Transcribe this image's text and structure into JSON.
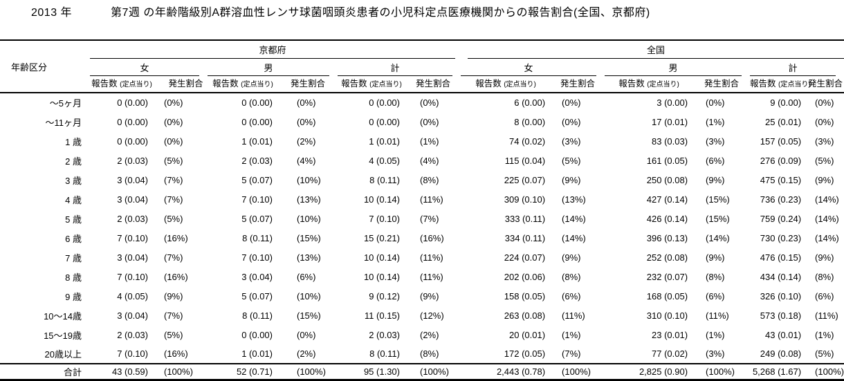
{
  "title": {
    "year": "2013 年",
    "main": "第7週 の年齢階級別A群溶血性レンサ球菌咽頭炎患者の小児科定点医療機関からの報告割合(全国、京都府)"
  },
  "colors": {
    "text": "#000000",
    "background": "#ffffff",
    "line": "#000000"
  },
  "table": {
    "age_header": "年齢区分",
    "region_headers": [
      "京都府",
      "全国"
    ],
    "gender_headers": [
      "女",
      "男",
      "計",
      "女",
      "男",
      "計"
    ],
    "subheader": {
      "reports": "報告数",
      "reports_note": "(定点当り)",
      "ratio": "発生割合"
    },
    "rows": [
      {
        "age": "～5ヶ月",
        "values": [
          "0 (0.00)",
          "(0%)",
          "0 (0.00)",
          "(0%)",
          "0 (0.00)",
          "(0%)",
          "6 (0.00)",
          "(0%)",
          "3 (0.00)",
          "(0%)",
          "9 (0.00)",
          "(0%)"
        ]
      },
      {
        "age": "～11ヶ月",
        "values": [
          "0 (0.00)",
          "(0%)",
          "0 (0.00)",
          "(0%)",
          "0 (0.00)",
          "(0%)",
          "8 (0.00)",
          "(0%)",
          "17 (0.01)",
          "(1%)",
          "25 (0.01)",
          "(0%)"
        ]
      },
      {
        "age": "1 歳",
        "values": [
          "0 (0.00)",
          "(0%)",
          "1 (0.01)",
          "(2%)",
          "1 (0.01)",
          "(1%)",
          "74 (0.02)",
          "(3%)",
          "83 (0.03)",
          "(3%)",
          "157 (0.05)",
          "(3%)"
        ]
      },
      {
        "age": "2 歳",
        "values": [
          "2 (0.03)",
          "(5%)",
          "2 (0.03)",
          "(4%)",
          "4 (0.05)",
          "(4%)",
          "115 (0.04)",
          "(5%)",
          "161 (0.05)",
          "(6%)",
          "276 (0.09)",
          "(5%)"
        ]
      },
      {
        "age": "3 歳",
        "values": [
          "3 (0.04)",
          "(7%)",
          "5 (0.07)",
          "(10%)",
          "8 (0.11)",
          "(8%)",
          "225 (0.07)",
          "(9%)",
          "250 (0.08)",
          "(9%)",
          "475 (0.15)",
          "(9%)"
        ]
      },
      {
        "age": "4 歳",
        "values": [
          "3 (0.04)",
          "(7%)",
          "7 (0.10)",
          "(13%)",
          "10 (0.14)",
          "(11%)",
          "309 (0.10)",
          "(13%)",
          "427 (0.14)",
          "(15%)",
          "736 (0.23)",
          "(14%)"
        ]
      },
      {
        "age": "5 歳",
        "values": [
          "2 (0.03)",
          "(5%)",
          "5 (0.07)",
          "(10%)",
          "7 (0.10)",
          "(7%)",
          "333 (0.11)",
          "(14%)",
          "426 (0.14)",
          "(15%)",
          "759 (0.24)",
          "(14%)"
        ]
      },
      {
        "age": "6 歳",
        "values": [
          "7 (0.10)",
          "(16%)",
          "8 (0.11)",
          "(15%)",
          "15 (0.21)",
          "(16%)",
          "334 (0.11)",
          "(14%)",
          "396 (0.13)",
          "(14%)",
          "730 (0.23)",
          "(14%)"
        ]
      },
      {
        "age": "7 歳",
        "values": [
          "3 (0.04)",
          "(7%)",
          "7 (0.10)",
          "(13%)",
          "10 (0.14)",
          "(11%)",
          "224 (0.07)",
          "(9%)",
          "252 (0.08)",
          "(9%)",
          "476 (0.15)",
          "(9%)"
        ]
      },
      {
        "age": "8 歳",
        "values": [
          "7 (0.10)",
          "(16%)",
          "3 (0.04)",
          "(6%)",
          "10 (0.14)",
          "(11%)",
          "202 (0.06)",
          "(8%)",
          "232 (0.07)",
          "(8%)",
          "434 (0.14)",
          "(8%)"
        ]
      },
      {
        "age": "9 歳",
        "values": [
          "4 (0.05)",
          "(9%)",
          "5 (0.07)",
          "(10%)",
          "9 (0.12)",
          "(9%)",
          "158 (0.05)",
          "(6%)",
          "168 (0.05)",
          "(6%)",
          "326 (0.10)",
          "(6%)"
        ]
      },
      {
        "age": "10～14歳",
        "values": [
          "3 (0.04)",
          "(7%)",
          "8 (0.11)",
          "(15%)",
          "11 (0.15)",
          "(12%)",
          "263 (0.08)",
          "(11%)",
          "310 (0.10)",
          "(11%)",
          "573 (0.18)",
          "(11%)"
        ]
      },
      {
        "age": "15～19歳",
        "values": [
          "2 (0.03)",
          "(5%)",
          "0 (0.00)",
          "(0%)",
          "2 (0.03)",
          "(2%)",
          "20 (0.01)",
          "(1%)",
          "23 (0.01)",
          "(1%)",
          "43 (0.01)",
          "(1%)"
        ]
      },
      {
        "age": "20歳以上",
        "values": [
          "7 (0.10)",
          "(16%)",
          "1 (0.01)",
          "(2%)",
          "8 (0.11)",
          "(8%)",
          "172 (0.05)",
          "(7%)",
          "77 (0.02)",
          "(3%)",
          "249 (0.08)",
          "(5%)"
        ]
      }
    ],
    "total_row": {
      "age": "合計",
      "values": [
        "43 (0.59)",
        "(100%)",
        "52 (0.71)",
        "(100%)",
        "95 (1.30)",
        "(100%)",
        "2,443 (0.78)",
        "(100%)",
        "2,825 (0.90)",
        "(100%)",
        "5,268 (1.67)",
        "(100%)"
      ]
    }
  }
}
